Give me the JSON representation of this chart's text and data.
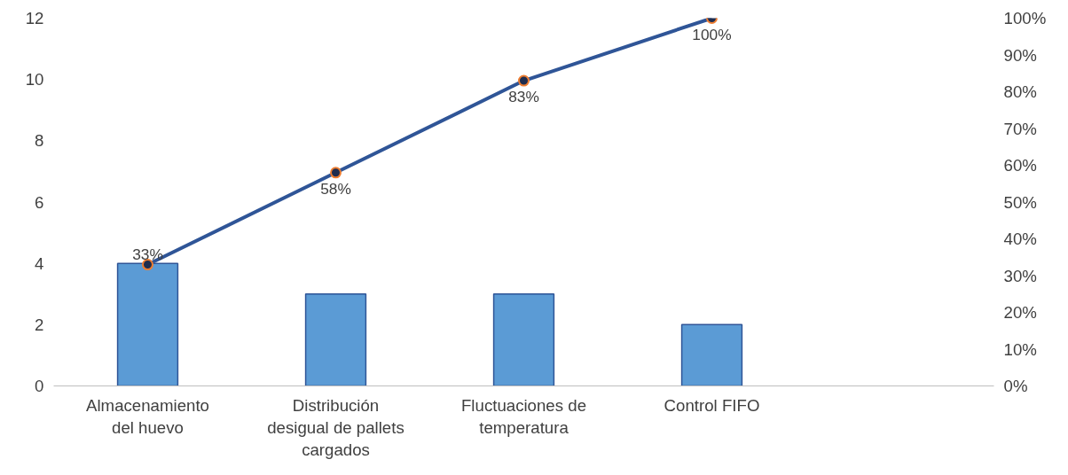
{
  "chart_data": {
    "type": "bar",
    "categories": [
      "Almacenamiento\ndel huevo",
      "Distribución\ndesigual de pallets\ncargados",
      "Fluctuaciones de\ntemperatura",
      "Control FIFO",
      null
    ],
    "series": [
      {
        "color": "#5b9bd5",
        "values": [
          4,
          3,
          3,
          2,
          null
        ]
      },
      {
        "type": "line",
        "axis": "y2",
        "color": "#2f5597",
        "marker": "circle",
        "values": [
          33,
          58,
          83,
          100,
          null
        ],
        "value_labels": [
          "33%",
          "58%",
          "83%",
          "100%",
          null
        ]
      }
    ],
    "ylim": [
      0,
      12
    ],
    "yticks": [
      0,
      2,
      4,
      6,
      8,
      10,
      12
    ],
    "y2lim": [
      0,
      100
    ],
    "y2ticks": [
      {
        "value": 0,
        "label": "0%"
      },
      {
        "value": 10,
        "label": "10%"
      },
      {
        "value": 20,
        "label": "20%"
      },
      {
        "value": 30,
        "label": "30%"
      },
      {
        "value": 40,
        "label": "40%"
      },
      {
        "value": 50,
        "label": "50%"
      },
      {
        "value": 60,
        "label": "60%"
      },
      {
        "value": 70,
        "label": "70%"
      },
      {
        "value": 80,
        "label": "80%"
      },
      {
        "value": 90,
        "label": "90%"
      },
      {
        "value": 100,
        "label": "100%"
      }
    ],
    "grid": false
  }
}
